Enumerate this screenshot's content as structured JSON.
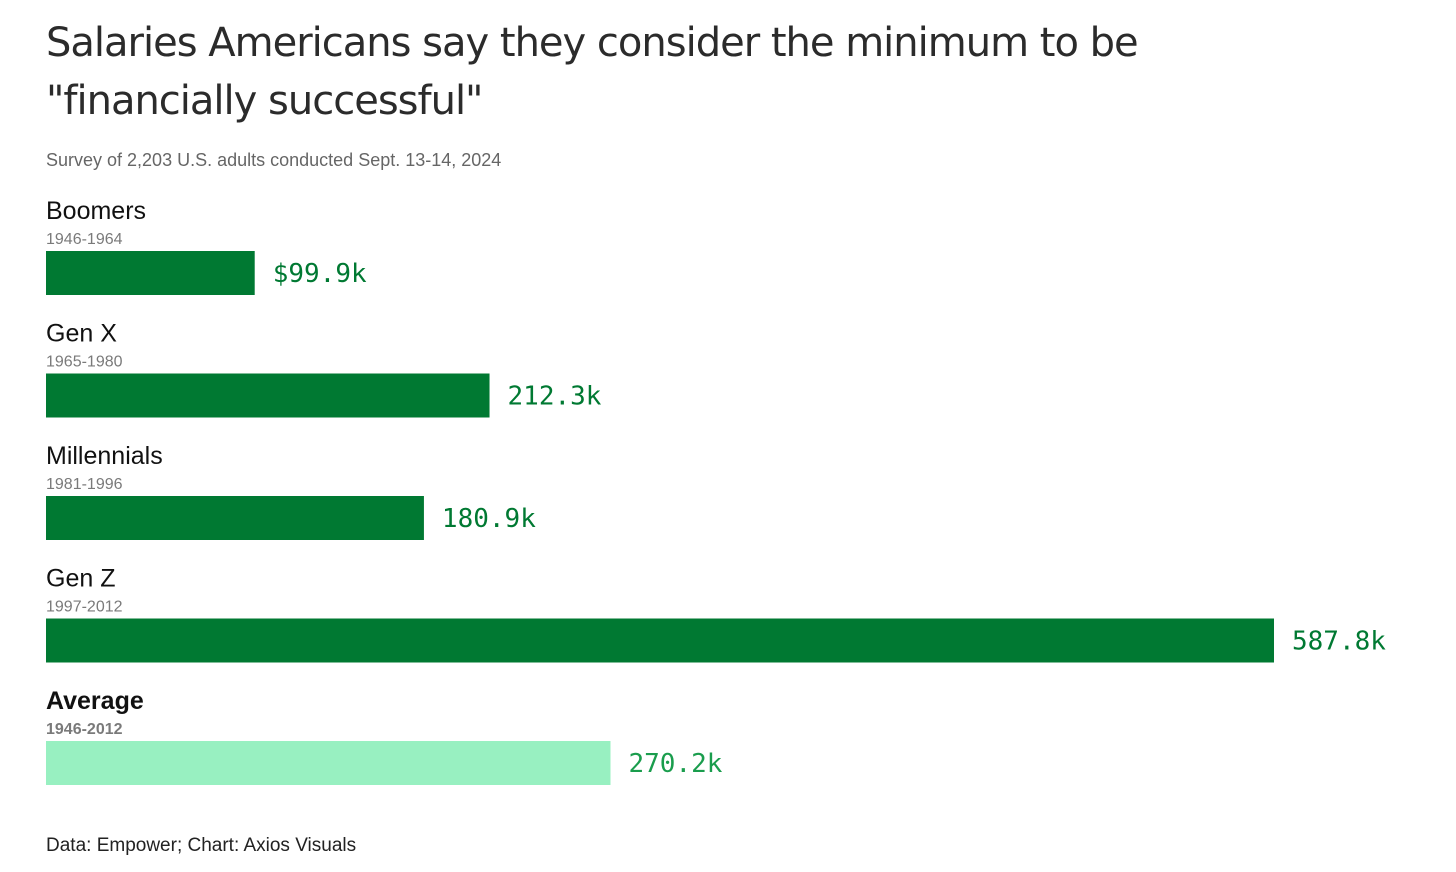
{
  "chart_data": {
    "type": "bar",
    "orientation": "horizontal",
    "title": "Salaries Americans say they consider the minimum to be \"financially successful\"",
    "subtitle": "Survey of 2,203 U.S. adults conducted Sept. 13-14, 2024",
    "source": "Data: Empower; Chart: Axios Visuals",
    "units": "thousands of dollars",
    "xlim": [
      0,
      587.8
    ],
    "grid": false,
    "legend": "none",
    "categories": [
      {
        "name": "Boomers",
        "years": "1946-1964",
        "value": 99.9,
        "label": "$99.9k",
        "color": "#007932",
        "label_color": "#007932",
        "emphasis": false
      },
      {
        "name": "Gen X",
        "years": "1965-1980",
        "value": 212.3,
        "label": "212.3k",
        "color": "#007932",
        "label_color": "#007932",
        "emphasis": false
      },
      {
        "name": "Millennials",
        "years": "1981-1996",
        "value": 180.9,
        "label": "180.9k",
        "color": "#007932",
        "label_color": "#007932",
        "emphasis": false
      },
      {
        "name": "Gen Z",
        "years": "1997-2012",
        "value": 587.8,
        "label": "587.8k",
        "color": "#007932",
        "label_color": "#007932",
        "emphasis": false
      },
      {
        "name": "Average",
        "years": "1946-2012",
        "value": 270.2,
        "label": "270.2k",
        "color": "#98f0c1",
        "label_color": "#1a9d4d",
        "emphasis": true
      }
    ]
  }
}
